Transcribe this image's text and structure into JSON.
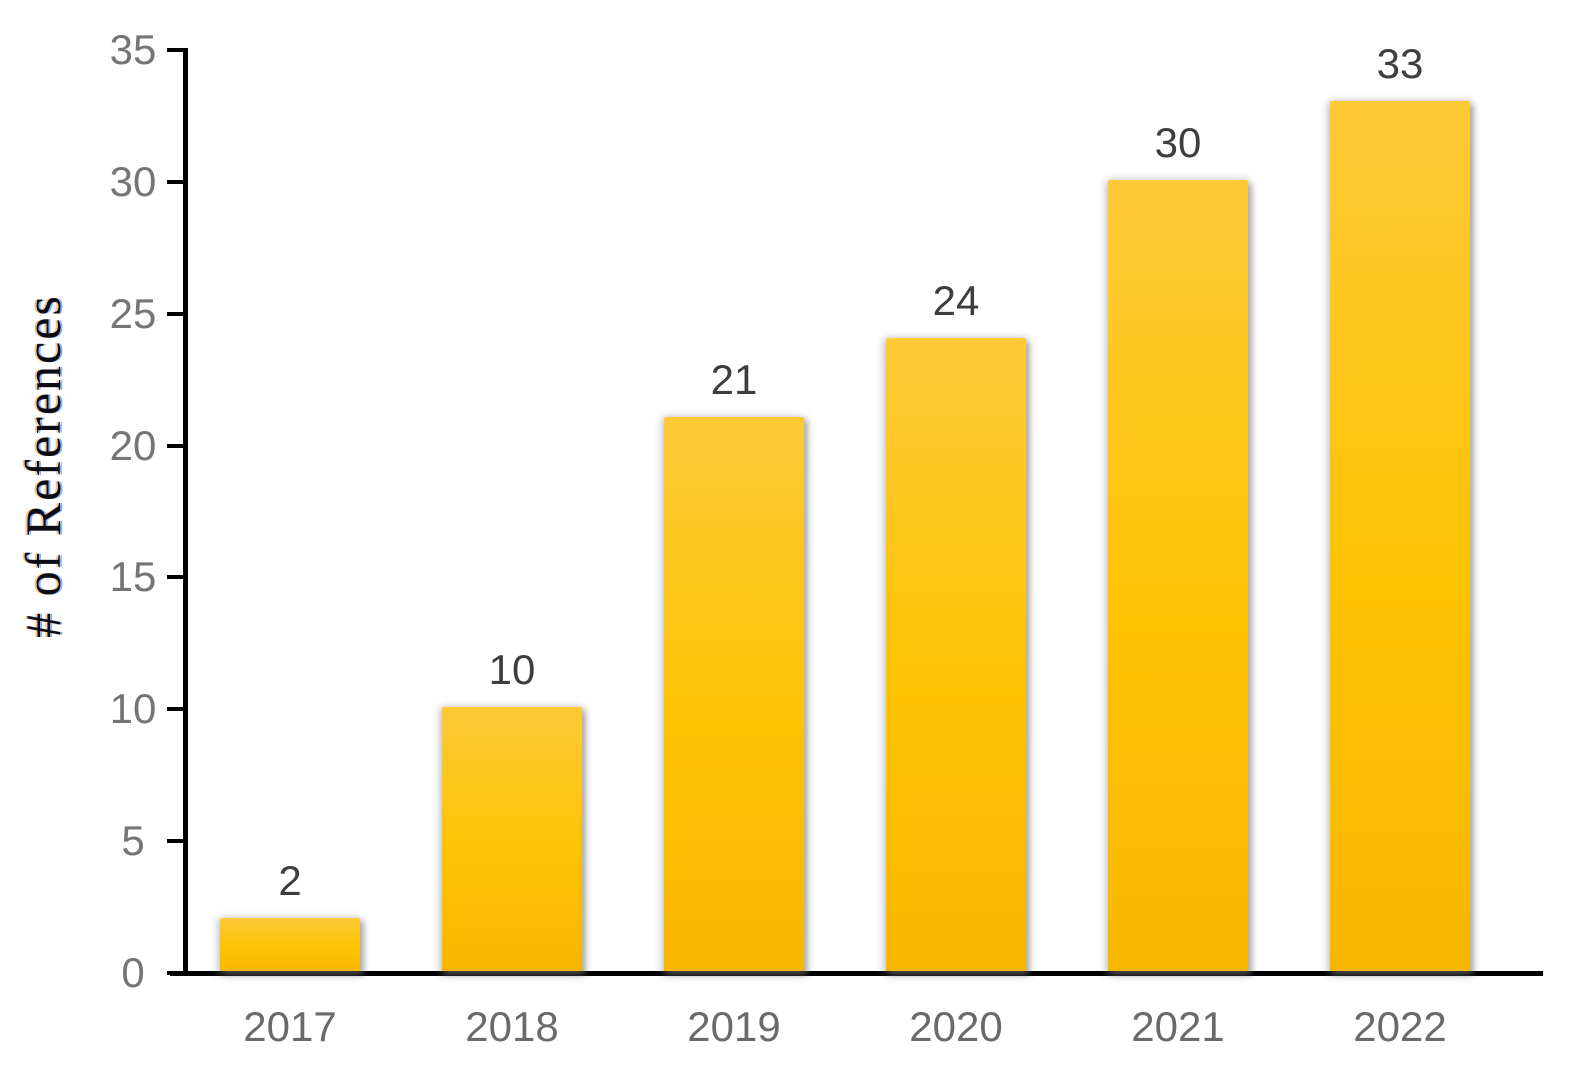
{
  "chart_data": {
    "type": "bar",
    "categories": [
      "2017",
      "2018",
      "2019",
      "2020",
      "2021",
      "2022"
    ],
    "values": [
      2,
      10,
      21,
      24,
      30,
      33
    ],
    "title": "",
    "xlabel": "",
    "ylabel": "# of References",
    "ylim": [
      0,
      35
    ],
    "ytick_step": 5,
    "yticks": [
      0,
      5,
      10,
      15,
      20,
      25,
      30,
      35
    ],
    "grid": false,
    "legend": null,
    "data_labels_shown": true,
    "colors": {
      "bar_gradient_top": "#FFC937",
      "bar_gradient_mid": "#FEC303",
      "bar_gradient_bottom": "#F7B700",
      "bar_shadow": "#6E6E6E",
      "axis_line": "#000000",
      "tick_label": "#757575",
      "x_label": "#6A6A6A",
      "data_label": "#3E3E3E",
      "y_title": "#0C0C14",
      "background": "#FFFFFF"
    }
  }
}
